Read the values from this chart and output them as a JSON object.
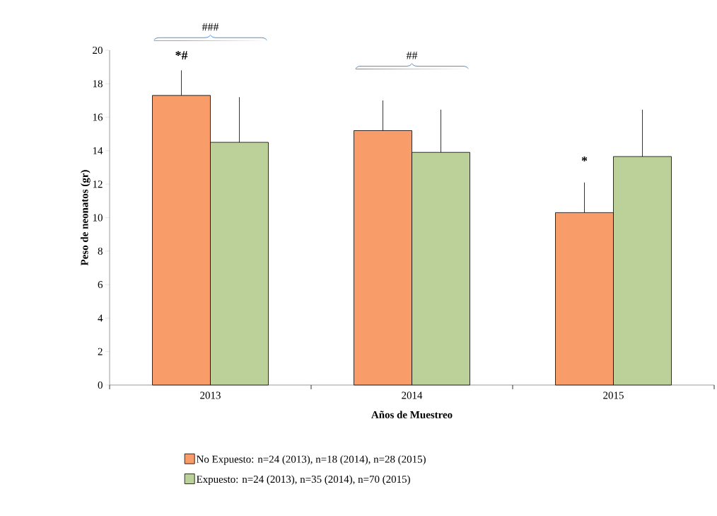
{
  "chart_data": {
    "type": "bar",
    "xlabel": "Años  de Muestreo",
    "ylabel": "Peso de neonatos (gr)",
    "categories": [
      "2013",
      "2014",
      "2015"
    ],
    "series": [
      {
        "name": "No Expuesto: n=24 (2013), n=18 (2014), n=28 (2015)",
        "color": "#f89c69",
        "values": [
          17.3,
          15.2,
          10.3
        ],
        "errors": [
          [
            17.3,
            18.8
          ],
          [
            15.2,
            17.0
          ],
          [
            10.3,
            12.1
          ]
        ]
      },
      {
        "name": "Expuesto:  n=24 (2013), n=35 (2014), n=70 (2015)",
        "color": "#bcd19a",
        "values": [
          14.5,
          13.9,
          13.65
        ],
        "errors": [
          [
            14.5,
            17.2
          ],
          [
            13.9,
            16.45
          ],
          [
            13.65,
            16.45
          ]
        ]
      }
    ],
    "ylim": [
      0,
      20
    ],
    "yticks": [
      0,
      2,
      4,
      6,
      8,
      10,
      12,
      14,
      16,
      18,
      20
    ],
    "legend": "bottom",
    "grid": false,
    "annotations": [
      "###",
      "##",
      "*#",
      "*"
    ]
  }
}
